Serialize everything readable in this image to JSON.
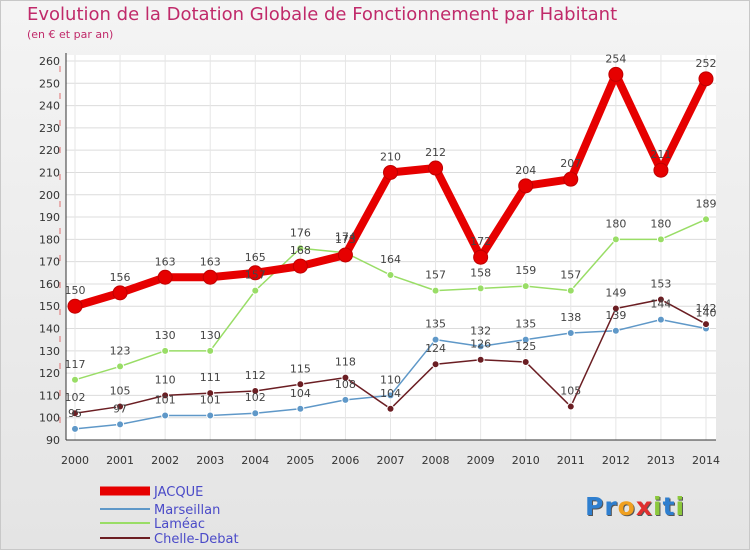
{
  "chart_data": {
    "type": "line",
    "title": "Evolution de la Dotation Globale de Fonctionnement par Habitant",
    "subtitle": "(en € et par an)",
    "xlabel": "",
    "ylabel": "",
    "x": [
      "2000",
      "2001",
      "2002",
      "2003",
      "2004",
      "2005",
      "2006",
      "2007",
      "2008",
      "2009",
      "2010",
      "2011",
      "2012",
      "2013",
      "2014"
    ],
    "ylim": [
      90,
      260
    ],
    "yticks": [
      90,
      100,
      110,
      120,
      130,
      140,
      150,
      160,
      170,
      180,
      190,
      200,
      210,
      220,
      230,
      240,
      250,
      260
    ],
    "grid": true,
    "legend_position": "bottom-left",
    "series": [
      {
        "name": "JACQUE",
        "color": "#e60000",
        "values": [
          150,
          156,
          163,
          163,
          165,
          168,
          173,
          210,
          212,
          172,
          204,
          207,
          254,
          211,
          252
        ]
      },
      {
        "name": "Marseillan",
        "color": "#5f98c8",
        "values": [
          95,
          97,
          101,
          101,
          102,
          104,
          108,
          110,
          135,
          132,
          135,
          138,
          139,
          144,
          140
        ]
      },
      {
        "name": "Laméac",
        "color": "#99dd66",
        "values": [
          117,
          123,
          130,
          130,
          157,
          176,
          174,
          164,
          157,
          158,
          159,
          157,
          180,
          180,
          189
        ]
      },
      {
        "name": "Chelle-Debat",
        "color": "#6b1e23",
        "values": [
          102,
          105,
          110,
          111,
          112,
          115,
          118,
          104,
          124,
          126,
          125,
          105,
          149,
          153,
          142
        ]
      }
    ]
  },
  "logo": {
    "letters": [
      "P",
      "r",
      "o",
      "x",
      "i",
      "t",
      "i"
    ],
    "colors": [
      "#2f7fcf",
      "#2f7fcf",
      "#f0a020",
      "#e03030",
      "#8cc83c",
      "#2f7fcf",
      "#8cc83c"
    ]
  }
}
